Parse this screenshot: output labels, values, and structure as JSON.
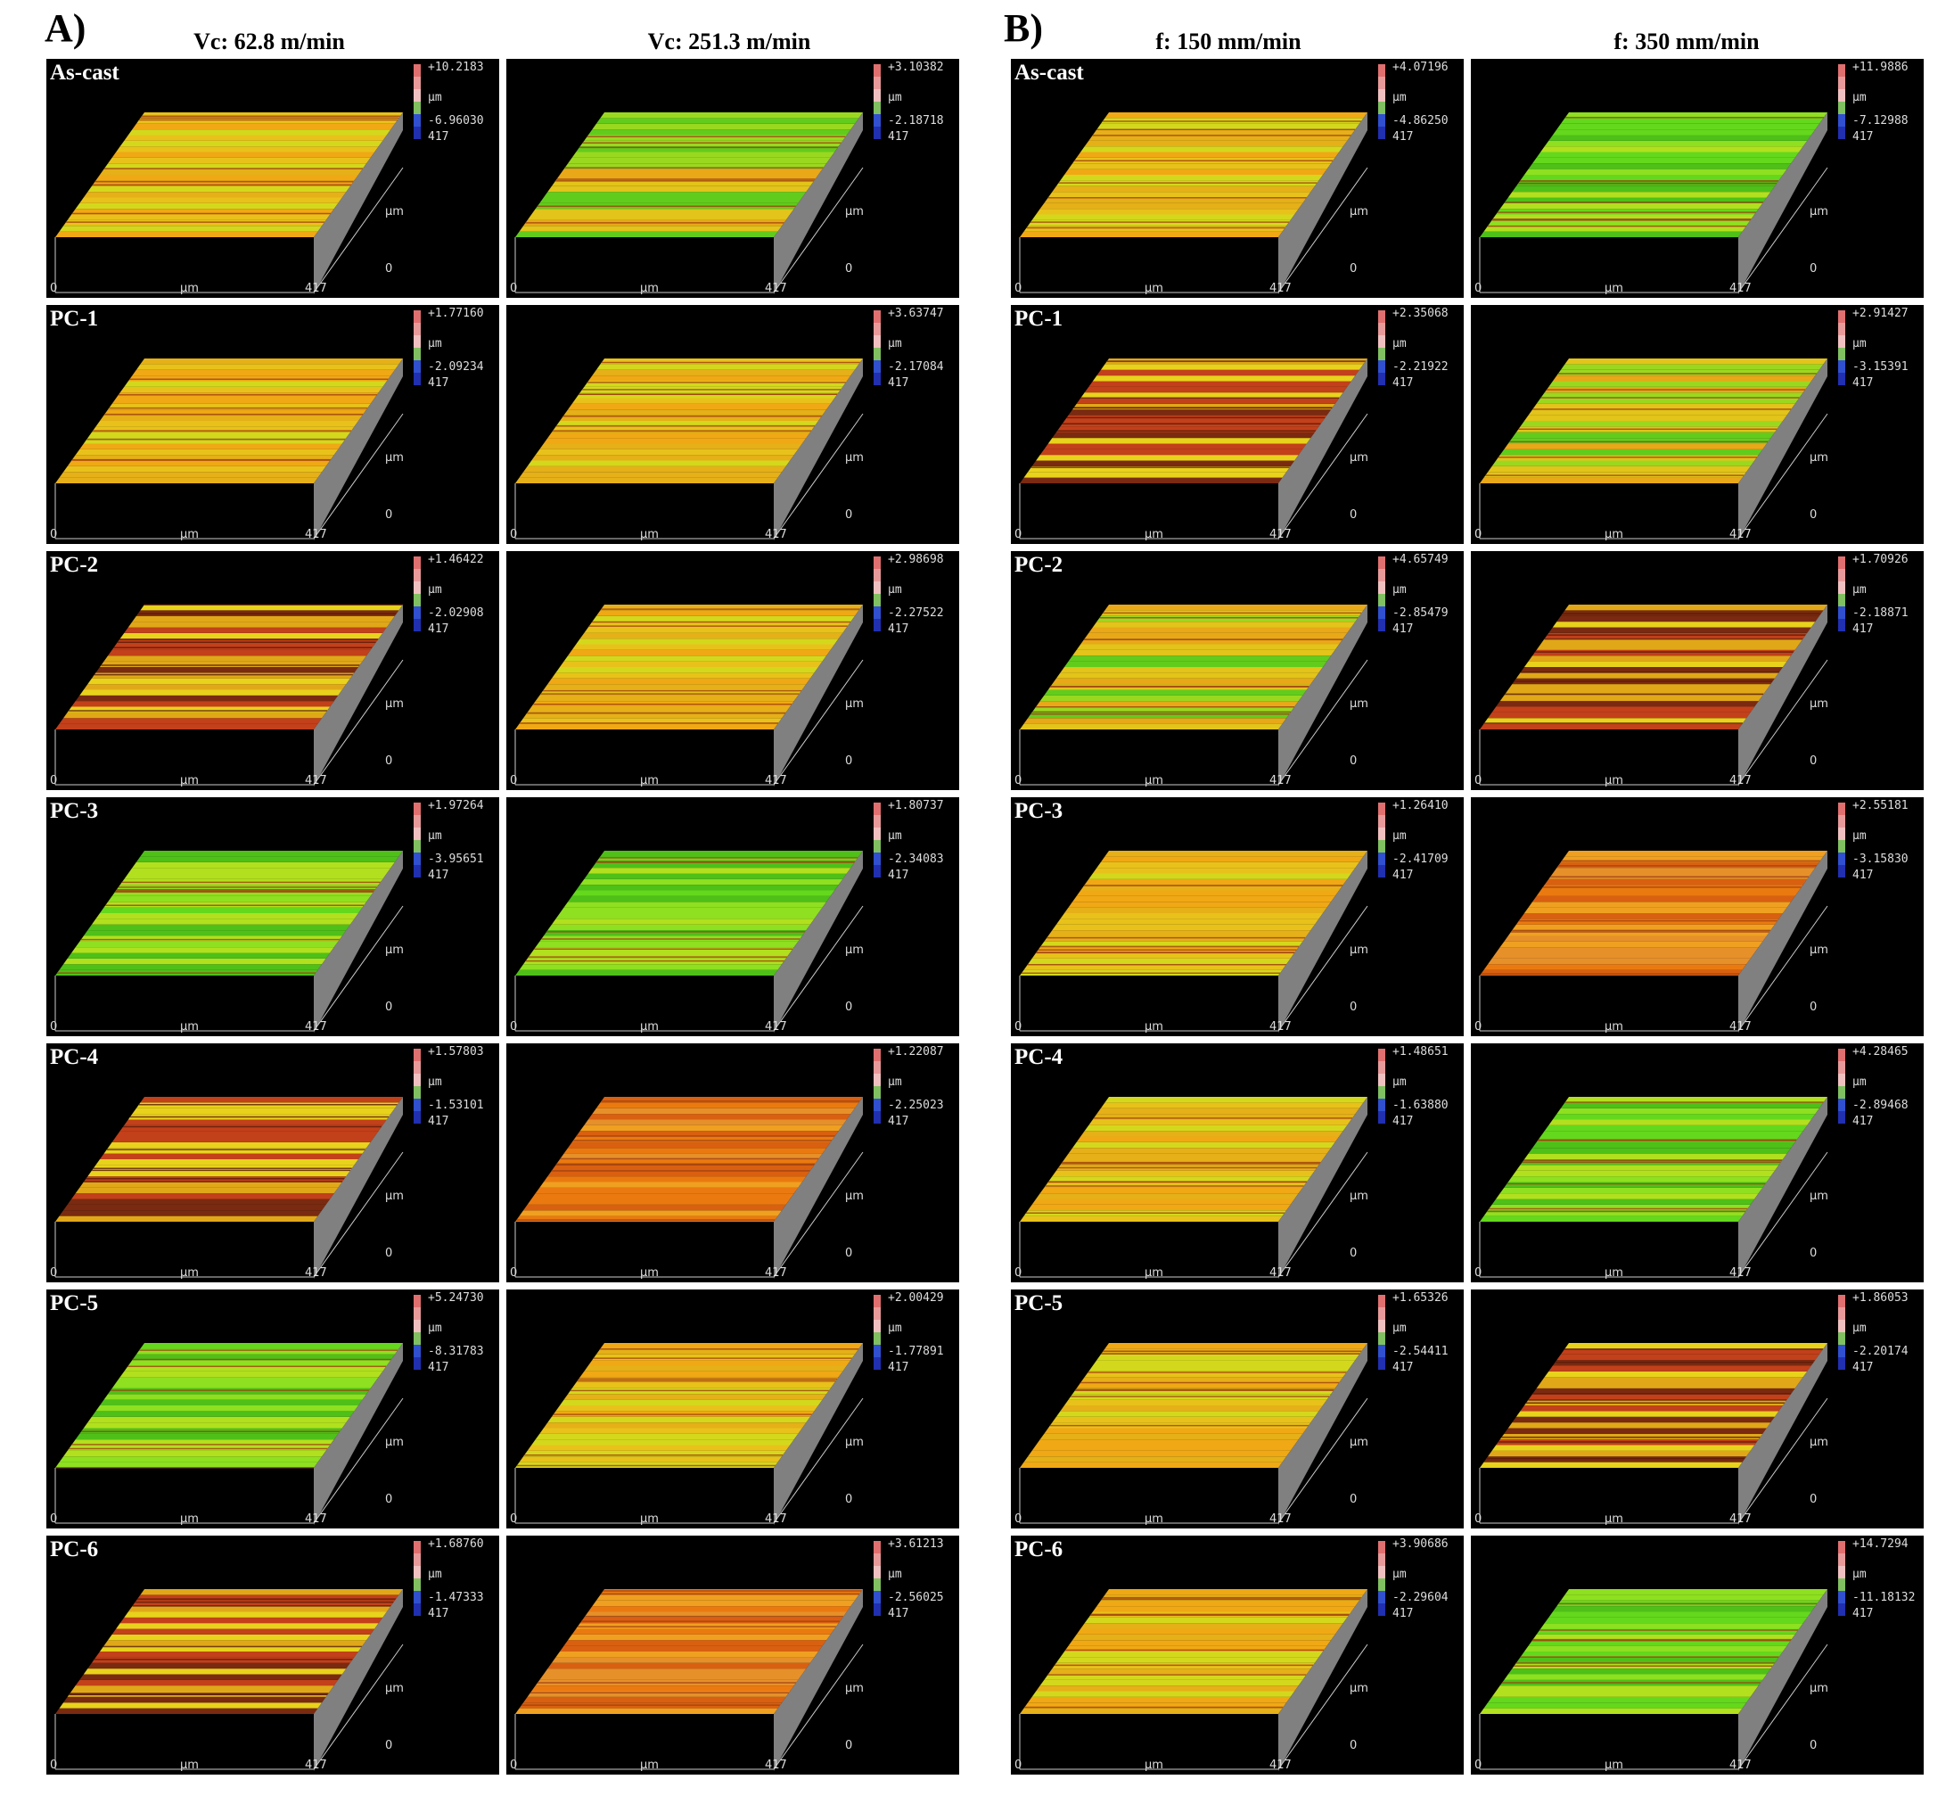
{
  "panels": [
    {
      "letter": "A)",
      "columns": [
        "Vc: 62.8 m/min",
        "Vc: 251.3 m/min"
      ],
      "rows": [
        "As-cast",
        "PC-1",
        "PC-2",
        "PC-3",
        "PC-4",
        "PC-5",
        "PC-6"
      ],
      "cells": [
        [
          {
            "max": "+10.2183",
            "min": "-6.96030",
            "theme": "yellow"
          },
          {
            "max": "+3.10382",
            "min": "-2.18718",
            "theme": "mixed"
          }
        ],
        [
          {
            "max": "+1.77160",
            "min": "-2.09234",
            "theme": "yellow"
          },
          {
            "max": "+3.63747",
            "min": "-2.17084",
            "theme": "yellow"
          }
        ],
        [
          {
            "max": "+1.46422",
            "min": "-2.02908",
            "theme": "striped"
          },
          {
            "max": "+2.98698",
            "min": "-2.27522",
            "theme": "yellow"
          }
        ],
        [
          {
            "max": "+1.97264",
            "min": "-3.95651",
            "theme": "green"
          },
          {
            "max": "+1.80737",
            "min": "-2.34083",
            "theme": "green"
          }
        ],
        [
          {
            "max": "+1.57803",
            "min": "-1.53101",
            "theme": "striped"
          },
          {
            "max": "+1.22087",
            "min": "-2.25023",
            "theme": "orange"
          }
        ],
        [
          {
            "max": "+5.24730",
            "min": "-8.31783",
            "theme": "green"
          },
          {
            "max": "+2.00429",
            "min": "-1.77891",
            "theme": "yellow"
          }
        ],
        [
          {
            "max": "+1.68760",
            "min": "-1.47333",
            "theme": "striped"
          },
          {
            "max": "+3.61213",
            "min": "-2.56025",
            "theme": "orange"
          }
        ]
      ]
    },
    {
      "letter": "B)",
      "columns": [
        "f: 150 mm/min",
        "f: 350 mm/min"
      ],
      "rows": [
        "As-cast",
        "PC-1",
        "PC-2",
        "PC-3",
        "PC-4",
        "PC-5",
        "PC-6"
      ],
      "cells": [
        [
          {
            "max": "+4.07196",
            "min": "-4.86250",
            "theme": "yellow"
          },
          {
            "max": "+11.9886",
            "min": "-7.12988",
            "theme": "green"
          }
        ],
        [
          {
            "max": "+2.35068",
            "min": "-2.21922",
            "theme": "striped"
          },
          {
            "max": "+2.91427",
            "min": "-3.15391",
            "theme": "mixed"
          }
        ],
        [
          {
            "max": "+4.65749",
            "min": "-2.85479",
            "theme": "mixed"
          },
          {
            "max": "+1.70926",
            "min": "-2.18871",
            "theme": "striped"
          }
        ],
        [
          {
            "max": "+1.26410",
            "min": "-2.41709",
            "theme": "yellow"
          },
          {
            "max": "+2.55181",
            "min": "-3.15830",
            "theme": "orange"
          }
        ],
        [
          {
            "max": "+1.48651",
            "min": "-1.63880",
            "theme": "yellow"
          },
          {
            "max": "+4.28465",
            "min": "-2.89468",
            "theme": "green"
          }
        ],
        [
          {
            "max": "+1.65326",
            "min": "-2.54411",
            "theme": "yellow"
          },
          {
            "max": "+1.86053",
            "min": "-2.20174",
            "theme": "striped"
          }
        ],
        [
          {
            "max": "+3.90686",
            "min": "-2.29604",
            "theme": "yellow"
          },
          {
            "max": "+14.7294",
            "min": "-11.18132",
            "theme": "green"
          }
        ]
      ]
    }
  ],
  "axis": {
    "unit": "μm",
    "zero": "0",
    "extent": "417"
  },
  "colors": {
    "yellow": [
      "#e8c21a",
      "#f0a814",
      "#d4d81c",
      "#e5b018"
    ],
    "orange": [
      "#ea7a10",
      "#e6902a",
      "#d96010",
      "#efa020"
    ],
    "green": [
      "#64d81c",
      "#8ee020",
      "#4ec018",
      "#b2e01e"
    ],
    "mixed": [
      "#9ad820",
      "#e2c41a",
      "#62cc1c",
      "#e8a818"
    ],
    "striped": [
      "#e0a818",
      "#c2401a",
      "#e8d21c",
      "#7a2a10"
    ],
    "side": "#808080",
    "colorbar": [
      "#e07070",
      "#e89a9a",
      "#f0c0c0",
      "#80c060",
      "#3050d0",
      "#2030b0"
    ]
  }
}
